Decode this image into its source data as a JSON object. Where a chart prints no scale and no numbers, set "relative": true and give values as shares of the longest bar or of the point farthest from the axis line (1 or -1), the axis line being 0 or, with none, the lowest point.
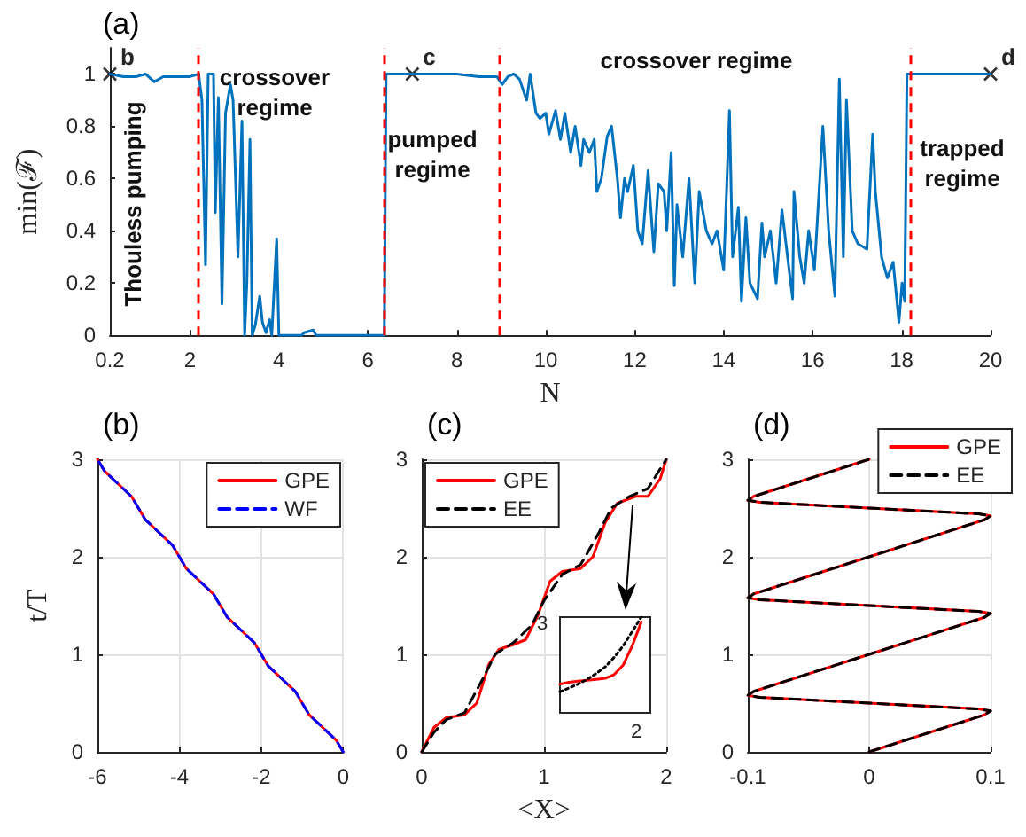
{
  "chart_data": [
    {
      "type": "line",
      "title": "(a)",
      "xlabel": "N",
      "ylabel": "min(ℱ)",
      "xlim": [
        0.2,
        20
      ],
      "ylim": [
        0,
        1.1
      ],
      "xticks": [
        0.2,
        2,
        4,
        6,
        8,
        10,
        12,
        14,
        16,
        18,
        20
      ],
      "yticks": [
        0,
        0.2,
        0.4,
        0.6,
        0.8,
        1
      ],
      "grid": false,
      "legend": false,
      "series": [
        {
          "color": "#0072bd",
          "x": [
            0.2,
            0.5,
            0.8,
            1.0,
            1.2,
            1.4,
            1.6,
            1.8,
            2.0,
            2.2,
            2.21,
            2.27,
            2.35,
            2.41,
            2.53,
            2.57,
            2.64,
            2.72,
            2.8,
            2.91,
            2.97,
            3.08,
            3.17,
            3.23,
            3.28,
            3.35,
            3.4,
            3.47,
            3.57,
            3.63,
            3.71,
            3.79,
            3.84,
            3.95,
            4.0,
            4.51,
            4.57,
            4.77,
            4.84,
            4.9,
            6.37,
            6.41,
            7.0,
            8.0,
            8.5,
            8.9,
            9.02,
            9.15,
            9.28,
            9.41,
            9.57,
            9.65,
            9.78,
            9.87,
            10.0,
            10.07,
            10.22,
            10.33,
            10.43,
            10.56,
            10.66,
            10.79,
            10.85,
            10.98,
            11.09,
            11.15,
            11.25,
            11.38,
            11.48,
            11.61,
            11.68,
            11.77,
            11.84,
            11.97,
            12.07,
            12.17,
            12.3,
            12.43,
            12.53,
            12.66,
            12.72,
            12.82,
            12.89,
            12.95,
            13.08,
            13.22,
            13.35,
            13.45,
            13.61,
            13.74,
            13.85,
            14.0,
            14.13,
            14.2,
            14.33,
            14.4,
            14.5,
            14.59,
            14.76,
            14.86,
            14.92,
            15.05,
            15.18,
            15.31,
            15.45,
            15.55,
            15.58,
            15.71,
            15.81,
            15.91,
            16.04,
            16.23,
            16.36,
            16.5,
            16.6,
            16.69,
            16.76,
            16.89,
            17.02,
            17.22,
            17.35,
            17.41,
            17.55,
            17.68,
            17.81,
            17.94,
            18.01,
            18.07,
            18.12,
            18.2,
            20
          ],
          "values": [
            1,
            0.99,
            0.99,
            1,
            0.97,
            0.99,
            0.99,
            0.99,
            0.99,
            1,
            0.98,
            0.9,
            0.27,
            1,
            1,
            0.47,
            0.91,
            0.12,
            0.85,
            0.96,
            0.9,
            0.3,
            0.82,
            0,
            0.2,
            0.75,
            0,
            0.04,
            0.15,
            0.05,
            0.01,
            0.06,
            0,
            0.37,
            0,
            0,
            0.01,
            0.02,
            0,
            0,
            0,
            1,
            1,
            1,
            0.99,
            0.99,
            0.96,
            0.99,
            1,
            0.98,
            0.9,
            1,
            0.85,
            0.83,
            0.85,
            0.77,
            0.86,
            0.75,
            0.85,
            0.7,
            0.8,
            0.65,
            0.75,
            0.7,
            0.75,
            0.55,
            0.6,
            0.76,
            0.8,
            0.6,
            0.45,
            0.6,
            0.55,
            0.65,
            0.4,
            0.35,
            0.63,
            0.32,
            0.58,
            0.55,
            0.4,
            0.7,
            0.19,
            0.5,
            0.3,
            0.6,
            0.2,
            0.55,
            0.4,
            0.35,
            0.4,
            0.25,
            0.86,
            0.3,
            0.49,
            0.13,
            0.45,
            0.2,
            0.14,
            0.43,
            0.3,
            0.4,
            0.2,
            0.48,
            0.28,
            0.14,
            0.55,
            0.3,
            0.2,
            0.4,
            0.25,
            0.8,
            0.4,
            0.15,
            0.98,
            0.3,
            0.9,
            0.4,
            0.35,
            0.33,
            0.77,
            0.55,
            0.3,
            0.22,
            0.28,
            0.05,
            0.2,
            0.13,
            1,
            1,
            1
          ]
        },
        {
          "type": "scatter",
          "color": "#000000",
          "marker": "cross",
          "x": [
            0.2,
            7,
            20
          ],
          "values": [
            1,
            1,
            1
          ]
        }
      ],
      "ref_lines": [
        {
          "axis": "x",
          "value": 2.2,
          "color": "#ff0000",
          "line_style": "dashed"
        },
        {
          "axis": "x",
          "value": 6.35,
          "color": "#ff0000",
          "line_style": "dashed"
        },
        {
          "axis": "x",
          "value": 8.95,
          "color": "#ff0000",
          "line_style": "dashed"
        },
        {
          "axis": "x",
          "value": 18.2,
          "color": "#ff0000",
          "line_style": "dashed"
        }
      ],
      "annotations": [
        {
          "text": "b",
          "x": 0.2,
          "y": 1
        },
        {
          "text": "c",
          "x": 7,
          "y": 1
        },
        {
          "text": "d",
          "x": 20,
          "y": 1
        },
        "Thouless pumping",
        "crossover\nregime",
        "pumped\nregime",
        "crossover regime",
        "trapped\nregime"
      ]
    },
    {
      "type": "line",
      "title": "(b)",
      "ylabel": "t/T",
      "xlim": [
        -6,
        0
      ],
      "ylim": [
        0,
        3
      ],
      "xticks": [
        -6,
        -4,
        -2,
        0
      ],
      "yticks": [
        0,
        1,
        2,
        3
      ],
      "grid": true,
      "legend": "top right",
      "series": [
        {
          "name": "GPE",
          "color": "#ff0000",
          "line_style": "solid",
          "x": [
            0,
            -0.17,
            -0.5,
            -0.83,
            -1.0,
            -1.17,
            -1.5,
            -1.83,
            -2.0,
            -2.17,
            -2.5,
            -2.83,
            -3.0,
            -3.17,
            -3.5,
            -3.83,
            -4.0,
            -4.17,
            -4.5,
            -4.83,
            -5.0,
            -5.17,
            -5.5,
            -5.83,
            -6.0
          ],
          "values": [
            0,
            0.12,
            0.25,
            0.38,
            0.5,
            0.62,
            0.75,
            0.88,
            1.0,
            1.12,
            1.25,
            1.38,
            1.5,
            1.62,
            1.75,
            1.88,
            2.0,
            2.12,
            2.25,
            2.38,
            2.5,
            2.62,
            2.75,
            2.88,
            3.0
          ]
        },
        {
          "name": "WF",
          "color": "#0000ff",
          "line_style": "dashed",
          "x": [
            0,
            -0.17,
            -0.5,
            -0.83,
            -1.0,
            -1.17,
            -1.5,
            -1.83,
            -2.0,
            -2.17,
            -2.5,
            -2.83,
            -3.0,
            -3.17,
            -3.5,
            -3.83,
            -4.0,
            -4.17,
            -4.5,
            -4.83,
            -5.0,
            -5.17,
            -5.5,
            -5.83,
            -6.0
          ],
          "values": [
            0,
            0.12,
            0.25,
            0.38,
            0.5,
            0.62,
            0.75,
            0.88,
            1.0,
            1.12,
            1.25,
            1.38,
            1.5,
            1.62,
            1.75,
            1.88,
            2.0,
            2.12,
            2.25,
            2.38,
            2.5,
            2.62,
            2.75,
            2.88,
            3.0
          ]
        }
      ]
    },
    {
      "type": "line",
      "title": "(c)",
      "xlabel": "<X>",
      "xlim": [
        0,
        2
      ],
      "ylim": [
        0,
        3
      ],
      "xticks": [
        0,
        1,
        2
      ],
      "yticks": [
        0,
        1,
        2,
        3
      ],
      "grid": true,
      "legend": "top left",
      "series": [
        {
          "name": "GPE",
          "color": "#ff0000",
          "line_style": "solid",
          "x": [
            0,
            0.1,
            0.2,
            0.35,
            0.45,
            0.55,
            0.63,
            0.75,
            0.85,
            0.95,
            1.05,
            1.15,
            1.3,
            1.4,
            1.5,
            1.6,
            1.75,
            1.85,
            1.95,
            2.0
          ],
          "values": [
            0,
            0.25,
            0.35,
            0.38,
            0.5,
            0.9,
            1.05,
            1.1,
            1.15,
            1.4,
            1.75,
            1.85,
            1.88,
            2.0,
            2.35,
            2.55,
            2.62,
            2.62,
            2.8,
            3.0
          ]
        },
        {
          "name": "EE",
          "color": "#000000",
          "line_style": "dashed",
          "x": [
            0,
            0.1,
            0.2,
            0.35,
            0.5,
            0.6,
            0.75,
            0.9,
            1.0,
            1.15,
            1.3,
            1.45,
            1.55,
            1.7,
            1.85,
            2.0
          ],
          "values": [
            0,
            0.2,
            0.33,
            0.4,
            0.75,
            1.0,
            1.12,
            1.3,
            1.55,
            1.82,
            1.92,
            2.25,
            2.5,
            2.62,
            2.7,
            3.0
          ]
        }
      ]
    },
    {
      "type": "line",
      "title": "(d)",
      "xlim": [
        -0.1,
        0.1
      ],
      "ylim": [
        0,
        3
      ],
      "xticks": [
        -0.1,
        0,
        0.1
      ],
      "yticks": [
        0,
        1,
        2,
        3
      ],
      "grid": true,
      "legend": "top right",
      "series": [
        {
          "name": "GPE",
          "color": "#ff0000",
          "line_style": "solid",
          "x": [
            0,
            0.05,
            0.095,
            0.1,
            0.09,
            0,
            -0.09,
            -0.1,
            -0.095,
            0,
            0.095,
            0.1,
            0.09,
            0,
            -0.09,
            -0.1,
            -0.095,
            0,
            0.095,
            0.1,
            0.09,
            0,
            -0.09,
            -0.1,
            -0.095,
            0
          ],
          "values": [
            0,
            0.2,
            0.38,
            0.42,
            0.44,
            0.5,
            0.56,
            0.58,
            0.62,
            1.0,
            1.38,
            1.42,
            1.44,
            1.5,
            1.56,
            1.58,
            1.62,
            2.0,
            2.38,
            2.42,
            2.44,
            2.5,
            2.56,
            2.58,
            2.62,
            3.0
          ]
        },
        {
          "name": "EE",
          "color": "#000000",
          "line_style": "dashed",
          "x": [
            0,
            0.05,
            0.095,
            0.1,
            0.09,
            0,
            -0.09,
            -0.1,
            -0.095,
            0,
            0.095,
            0.1,
            0.09,
            0,
            -0.09,
            -0.1,
            -0.095,
            0,
            0.095,
            0.1,
            0.09,
            0,
            -0.09,
            -0.1,
            -0.095,
            0
          ],
          "values": [
            0,
            0.2,
            0.38,
            0.42,
            0.44,
            0.5,
            0.56,
            0.58,
            0.62,
            1.0,
            1.38,
            1.42,
            1.44,
            1.5,
            1.56,
            1.58,
            1.62,
            2.0,
            2.38,
            2.42,
            2.44,
            2.5,
            2.56,
            2.58,
            2.62,
            3.0
          ]
        }
      ]
    },
    {
      "type": "line",
      "relative": true,
      "categories": [
        null,
        null,
        null,
        null,
        null,
        null,
        null,
        null,
        null,
        null,
        null
      ],
      "legend": false,
      "annotations": [
        "3",
        "2"
      ],
      "series": [
        {
          "color": "#ff0000",
          "line_style": "solid",
          "values": [
            0.3,
            0.32,
            0.33,
            0.34,
            0.35,
            0.36,
            0.4,
            0.5,
            0.7,
            0.95,
            null
          ]
        },
        {
          "color": "#000000",
          "line_style": "dotted",
          "values": [
            0.22,
            0.26,
            0.3,
            0.35,
            0.41,
            0.48,
            0.58,
            0.7,
            0.85,
            1,
            null
          ]
        }
      ]
    }
  ]
}
